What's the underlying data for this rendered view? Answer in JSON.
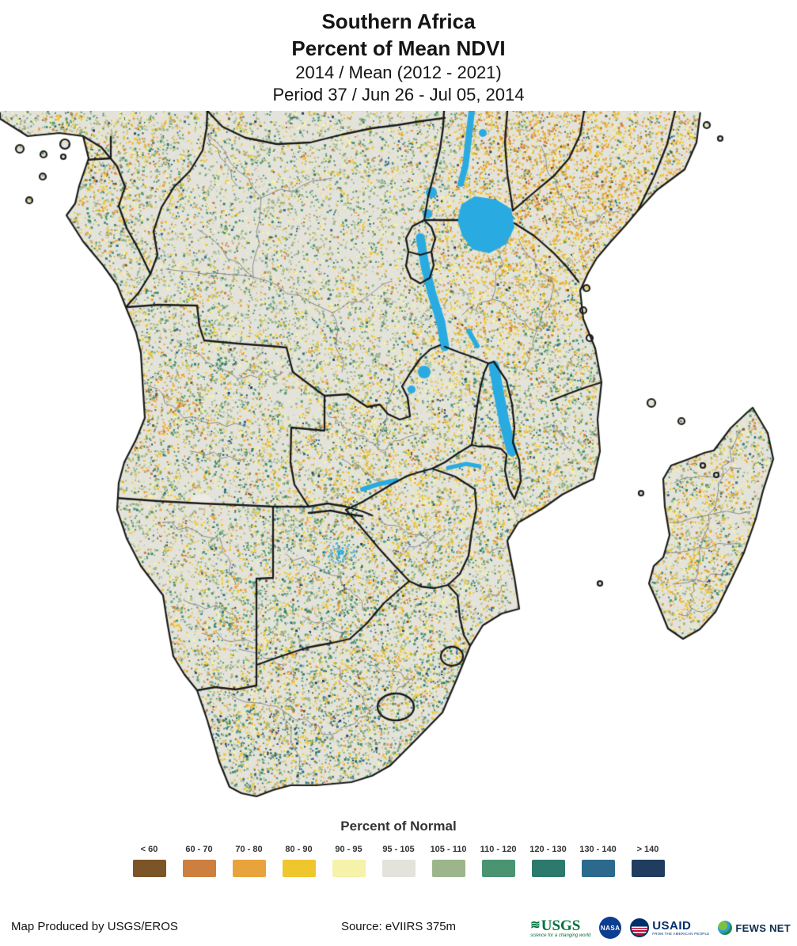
{
  "header": {
    "title_line1": "Southern Africa",
    "title_line2": "Percent of Mean NDVI",
    "subtitle_line1": "2014 / Mean (2012 - 2021)",
    "subtitle_line2": "Period 37 / Jun 26 - Jul 05, 2014"
  },
  "legend": {
    "title": "Percent of Normal",
    "classes": [
      {
        "label": "< 60",
        "color": "#7b5427"
      },
      {
        "label": "60 - 70",
        "color": "#cc7f3f"
      },
      {
        "label": "70 - 80",
        "color": "#e9a33d"
      },
      {
        "label": "80 - 90",
        "color": "#f0c62e"
      },
      {
        "label": "90 - 95",
        "color": "#f6f2a9"
      },
      {
        "label": "95 - 105",
        "color": "#e3e3db"
      },
      {
        "label": "105 - 110",
        "color": "#9cb58b"
      },
      {
        "label": "110 - 120",
        "color": "#4a9471"
      },
      {
        "label": "120 - 130",
        "color": "#2c7a6d"
      },
      {
        "label": "130 - 140",
        "color": "#2b6a8c"
      },
      {
        "label": "> 140",
        "color": "#203d60"
      }
    ]
  },
  "map": {
    "ocean_color": "#ffffff",
    "lake_color": "#29abe2",
    "coastline_color": "#1b1b1b",
    "admin_boundary_color": "#8a8a8a"
  },
  "footer": {
    "credit": "Map Produced by USGS/EROS",
    "source": "Source: eVIIRS 375m",
    "logos": {
      "usgs": {
        "name": "USGS",
        "tagline": "science for a changing world"
      },
      "nasa": {
        "name": "NASA"
      },
      "usaid": {
        "name": "USAID",
        "tagline": "FROM THE AMERICAN PEOPLE"
      },
      "fewsnet": {
        "name": "FEWS NET"
      }
    }
  }
}
